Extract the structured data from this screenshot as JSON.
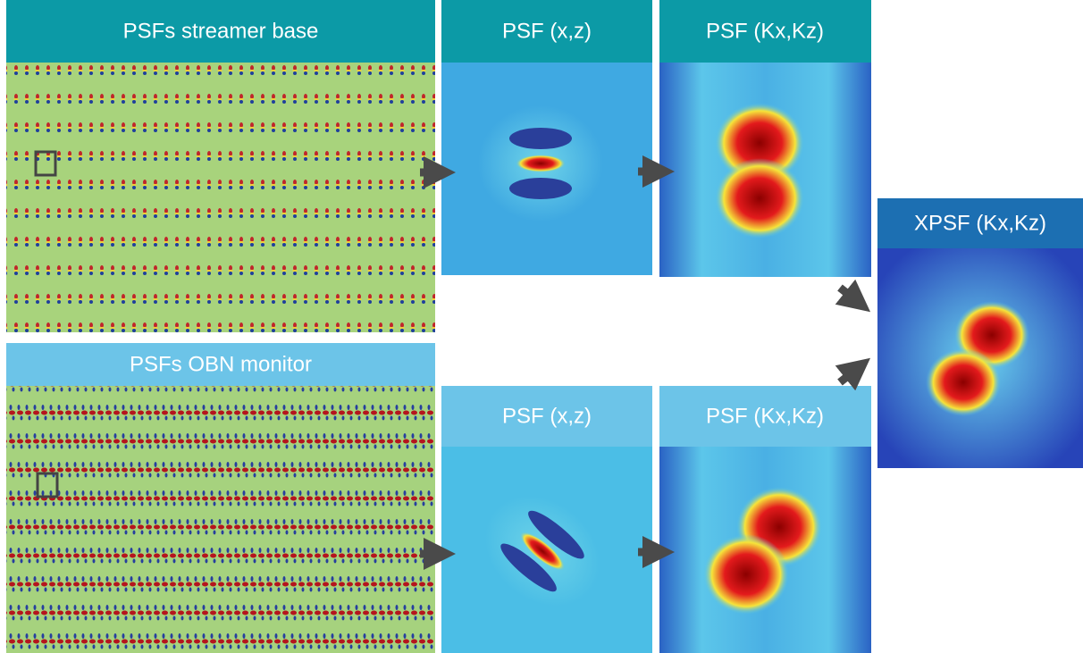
{
  "panels": [
    {
      "title": "PSFs streamer base"
    },
    {
      "title": "PSF (x,z)"
    },
    {
      "title": "PSF (Kx,Kz)"
    },
    {
      "title": "XPSF (Kx,Kz)"
    },
    {
      "title": "PSFs OBN monitor"
    },
    {
      "title": "PSF (x,z)"
    },
    {
      "title": "PSF (Kx,Kz)"
    }
  ]
}
